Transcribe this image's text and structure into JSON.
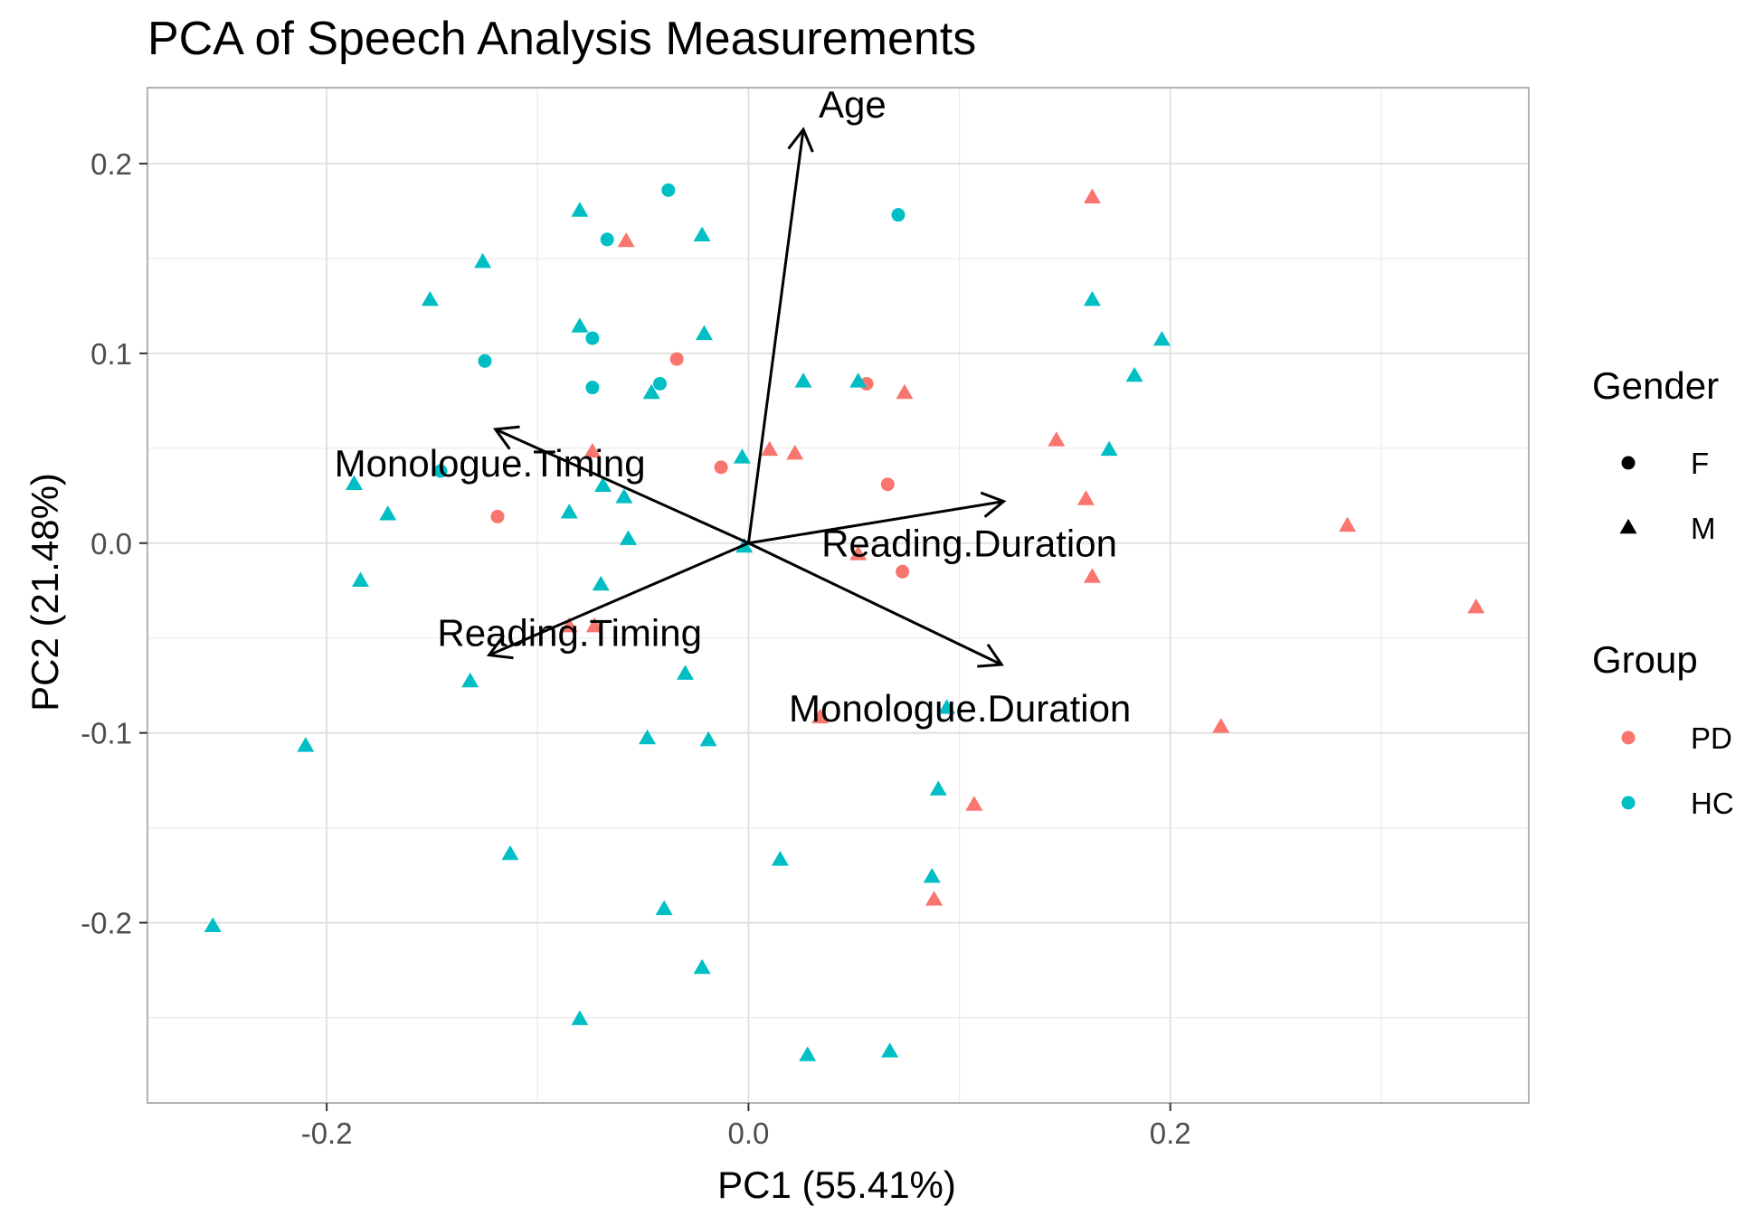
{
  "chart_data": {
    "type": "scatter",
    "title": "PCA of Speech Analysis Measurements",
    "xlabel": "PC1 (55.41%)",
    "ylabel": "PC2 (21.48%)",
    "xlim": [
      -0.285,
      0.37
    ],
    "ylim": [
      -0.295,
      0.24
    ],
    "x_ticks": [
      -0.2,
      0.0,
      0.2
    ],
    "x_tick_labels": [
      "-0.2",
      "0.0",
      "0.2"
    ],
    "y_ticks": [
      -0.2,
      -0.1,
      0.0,
      0.1,
      0.2
    ],
    "y_tick_labels": [
      "-0.2",
      "-0.1",
      "0.0",
      "0.1",
      "0.2"
    ],
    "grid": true,
    "legend_position": "right",
    "legends": [
      {
        "title": "Gender",
        "entries": [
          {
            "label": "F",
            "shape": "circle"
          },
          {
            "label": "M",
            "shape": "triangle"
          }
        ]
      },
      {
        "title": "Group",
        "entries": [
          {
            "label": "PD",
            "color": "#F8766D"
          },
          {
            "label": "HC",
            "color": "#00BFC4"
          }
        ]
      }
    ],
    "colors": {
      "PD": "#F8766D",
      "HC": "#00BFC4"
    },
    "loadings": [
      {
        "name": "Age",
        "x": 0.026,
        "y": 0.218
      },
      {
        "name": "Monologue.Timing",
        "x": -0.12,
        "y": 0.06
      },
      {
        "name": "Reading.Duration",
        "x": 0.121,
        "y": 0.022
      },
      {
        "name": "Reading.Timing",
        "x": -0.123,
        "y": -0.059
      },
      {
        "name": "Monologue.Duration",
        "x": 0.12,
        "y": -0.064
      }
    ],
    "points": [
      {
        "x": -0.038,
        "y": 0.186,
        "group": "HC",
        "gender": "F"
      },
      {
        "x": -0.067,
        "y": 0.16,
        "group": "HC",
        "gender": "F"
      },
      {
        "x": 0.071,
        "y": 0.173,
        "group": "HC",
        "gender": "F"
      },
      {
        "x": -0.125,
        "y": 0.096,
        "group": "HC",
        "gender": "F"
      },
      {
        "x": -0.074,
        "y": 0.108,
        "group": "HC",
        "gender": "F"
      },
      {
        "x": -0.074,
        "y": 0.082,
        "group": "HC",
        "gender": "F"
      },
      {
        "x": -0.042,
        "y": 0.084,
        "group": "HC",
        "gender": "F"
      },
      {
        "x": -0.146,
        "y": 0.038,
        "group": "HC",
        "gender": "F"
      },
      {
        "x": -0.034,
        "y": 0.097,
        "group": "PD",
        "gender": "F"
      },
      {
        "x": 0.056,
        "y": 0.084,
        "group": "PD",
        "gender": "F"
      },
      {
        "x": -0.013,
        "y": 0.04,
        "group": "PD",
        "gender": "F"
      },
      {
        "x": 0.066,
        "y": 0.031,
        "group": "PD",
        "gender": "F"
      },
      {
        "x": -0.119,
        "y": 0.014,
        "group": "PD",
        "gender": "F"
      },
      {
        "x": 0.073,
        "y": -0.015,
        "group": "PD",
        "gender": "F"
      },
      {
        "x": -0.08,
        "y": 0.175,
        "group": "HC",
        "gender": "M"
      },
      {
        "x": -0.022,
        "y": 0.162,
        "group": "HC",
        "gender": "M"
      },
      {
        "x": -0.126,
        "y": 0.148,
        "group": "HC",
        "gender": "M"
      },
      {
        "x": -0.151,
        "y": 0.128,
        "group": "HC",
        "gender": "M"
      },
      {
        "x": -0.08,
        "y": 0.114,
        "group": "HC",
        "gender": "M"
      },
      {
        "x": -0.021,
        "y": 0.11,
        "group": "HC",
        "gender": "M"
      },
      {
        "x": -0.046,
        "y": 0.079,
        "group": "HC",
        "gender": "M"
      },
      {
        "x": 0.026,
        "y": 0.085,
        "group": "HC",
        "gender": "M"
      },
      {
        "x": 0.052,
        "y": 0.085,
        "group": "HC",
        "gender": "M"
      },
      {
        "x": 0.163,
        "y": 0.128,
        "group": "HC",
        "gender": "M"
      },
      {
        "x": 0.196,
        "y": 0.107,
        "group": "HC",
        "gender": "M"
      },
      {
        "x": 0.183,
        "y": 0.088,
        "group": "HC",
        "gender": "M"
      },
      {
        "x": 0.171,
        "y": 0.049,
        "group": "HC",
        "gender": "M"
      },
      {
        "x": -0.003,
        "y": 0.045,
        "group": "HC",
        "gender": "M"
      },
      {
        "x": -0.187,
        "y": 0.031,
        "group": "HC",
        "gender": "M"
      },
      {
        "x": -0.069,
        "y": 0.03,
        "group": "HC",
        "gender": "M"
      },
      {
        "x": -0.059,
        "y": 0.024,
        "group": "HC",
        "gender": "M"
      },
      {
        "x": -0.171,
        "y": 0.015,
        "group": "HC",
        "gender": "M"
      },
      {
        "x": -0.085,
        "y": 0.016,
        "group": "HC",
        "gender": "M"
      },
      {
        "x": -0.057,
        "y": 0.002,
        "group": "HC",
        "gender": "M"
      },
      {
        "x": -0.002,
        "y": -0.002,
        "group": "HC",
        "gender": "M"
      },
      {
        "x": -0.184,
        "y": -0.02,
        "group": "HC",
        "gender": "M"
      },
      {
        "x": -0.07,
        "y": -0.022,
        "group": "HC",
        "gender": "M"
      },
      {
        "x": -0.132,
        "y": -0.073,
        "group": "HC",
        "gender": "M"
      },
      {
        "x": -0.03,
        "y": -0.069,
        "group": "HC",
        "gender": "M"
      },
      {
        "x": -0.21,
        "y": -0.107,
        "group": "HC",
        "gender": "M"
      },
      {
        "x": -0.048,
        "y": -0.103,
        "group": "HC",
        "gender": "M"
      },
      {
        "x": -0.019,
        "y": -0.104,
        "group": "HC",
        "gender": "M"
      },
      {
        "x": 0.094,
        "y": -0.087,
        "group": "HC",
        "gender": "M"
      },
      {
        "x": 0.09,
        "y": -0.13,
        "group": "HC",
        "gender": "M"
      },
      {
        "x": -0.113,
        "y": -0.164,
        "group": "HC",
        "gender": "M"
      },
      {
        "x": 0.015,
        "y": -0.167,
        "group": "HC",
        "gender": "M"
      },
      {
        "x": 0.087,
        "y": -0.176,
        "group": "HC",
        "gender": "M"
      },
      {
        "x": -0.04,
        "y": -0.193,
        "group": "HC",
        "gender": "M"
      },
      {
        "x": -0.254,
        "y": -0.202,
        "group": "HC",
        "gender": "M"
      },
      {
        "x": -0.022,
        "y": -0.224,
        "group": "HC",
        "gender": "M"
      },
      {
        "x": -0.08,
        "y": -0.251,
        "group": "HC",
        "gender": "M"
      },
      {
        "x": 0.028,
        "y": -0.27,
        "group": "HC",
        "gender": "M"
      },
      {
        "x": 0.067,
        "y": -0.268,
        "group": "HC",
        "gender": "M"
      },
      {
        "x": -0.058,
        "y": 0.159,
        "group": "PD",
        "gender": "M"
      },
      {
        "x": 0.163,
        "y": 0.182,
        "group": "PD",
        "gender": "M"
      },
      {
        "x": 0.074,
        "y": 0.079,
        "group": "PD",
        "gender": "M"
      },
      {
        "x": 0.146,
        "y": 0.054,
        "group": "PD",
        "gender": "M"
      },
      {
        "x": 0.01,
        "y": 0.049,
        "group": "PD",
        "gender": "M"
      },
      {
        "x": 0.022,
        "y": 0.047,
        "group": "PD",
        "gender": "M"
      },
      {
        "x": -0.074,
        "y": 0.048,
        "group": "PD",
        "gender": "M"
      },
      {
        "x": 0.16,
        "y": 0.023,
        "group": "PD",
        "gender": "M"
      },
      {
        "x": 0.284,
        "y": 0.009,
        "group": "PD",
        "gender": "M"
      },
      {
        "x": 0.052,
        "y": -0.006,
        "group": "PD",
        "gender": "M"
      },
      {
        "x": 0.163,
        "y": -0.018,
        "group": "PD",
        "gender": "M"
      },
      {
        "x": 0.345,
        "y": -0.034,
        "group": "PD",
        "gender": "M"
      },
      {
        "x": -0.085,
        "y": -0.044,
        "group": "PD",
        "gender": "M"
      },
      {
        "x": -0.073,
        "y": -0.044,
        "group": "PD",
        "gender": "M"
      },
      {
        "x": 0.034,
        "y": -0.092,
        "group": "PD",
        "gender": "M"
      },
      {
        "x": 0.224,
        "y": -0.097,
        "group": "PD",
        "gender": "M"
      },
      {
        "x": 0.107,
        "y": -0.138,
        "group": "PD",
        "gender": "M"
      },
      {
        "x": 0.088,
        "y": -0.188,
        "group": "PD",
        "gender": "M"
      }
    ]
  }
}
